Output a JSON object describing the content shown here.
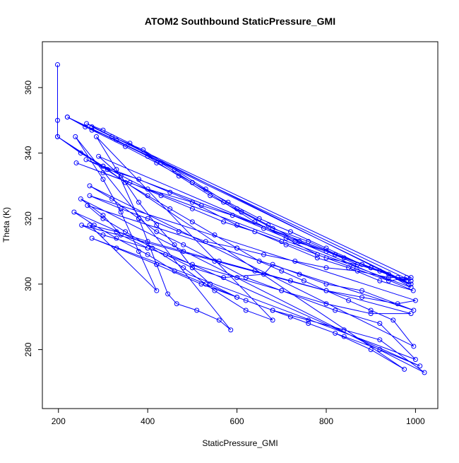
{
  "chart_data": {
    "type": "scatter",
    "title": "ATOM2 Southbound StaticPressure_GMI",
    "xlabel": "StaticPressure_GMI",
    "ylabel": "Theta (K)",
    "xlim": [
      164,
      1050
    ],
    "ylim": [
      262,
      374
    ],
    "xticks": [
      200,
      400,
      600,
      800,
      1000
    ],
    "yticks": [
      280,
      300,
      320,
      340,
      360
    ],
    "grid": false,
    "legend": "none",
    "series_color": "#0000ff",
    "series": [
      {
        "style": "lines+points",
        "points": [
          [
            198,
            367
          ],
          [
            198,
            350
          ],
          [
            198,
            345
          ],
          [
            250,
            340
          ],
          [
            300,
            336
          ],
          [
            350,
            331
          ],
          [
            400,
            327
          ],
          [
            450,
            323
          ],
          [
            500,
            319
          ],
          [
            550,
            315
          ],
          [
            600,
            311
          ],
          [
            650,
            307
          ],
          [
            700,
            304
          ],
          [
            750,
            301
          ],
          [
            800,
            298
          ],
          [
            850,
            295
          ],
          [
            900,
            292
          ],
          [
            950,
            289
          ],
          [
            996,
            281
          ],
          [
            270,
            330
          ],
          [
            320,
            326
          ],
          [
            380,
            320
          ],
          [
            420,
            316
          ],
          [
            480,
            312
          ],
          [
            550,
            307
          ],
          [
            620,
            302
          ],
          [
            700,
            298
          ],
          [
            800,
            294
          ],
          [
            900,
            291
          ],
          [
            990,
            291
          ],
          [
            252,
            318
          ],
          [
            300,
            315
          ],
          [
            400,
            311
          ],
          [
            500,
            306
          ],
          [
            600,
            302
          ],
          [
            700,
            298
          ],
          [
            820,
            292
          ],
          [
            920,
            288
          ],
          [
            1000,
            277
          ],
          [
            275,
            314
          ],
          [
            330,
            311
          ],
          [
            420,
            306
          ],
          [
            520,
            300
          ],
          [
            620,
            295
          ],
          [
            720,
            290
          ],
          [
            820,
            285
          ],
          [
            900,
            280
          ],
          [
            975,
            274
          ],
          [
            198,
            345
          ],
          [
            300,
            336
          ],
          [
            400,
            329
          ],
          [
            500,
            325
          ],
          [
            600,
            318
          ],
          [
            700,
            313
          ],
          [
            800,
            308
          ],
          [
            900,
            305
          ],
          [
            990,
            300
          ],
          [
            220,
            351
          ],
          [
            275,
            347
          ],
          [
            350,
            342
          ],
          [
            420,
            337
          ],
          [
            500,
            331
          ],
          [
            580,
            325
          ],
          [
            650,
            320
          ],
          [
            720,
            316
          ],
          [
            800,
            311
          ],
          [
            880,
            306
          ],
          [
            960,
            302
          ],
          [
            990,
            301
          ],
          [
            220,
            351
          ],
          [
            260,
            348
          ],
          [
            330,
            344
          ],
          [
            400,
            339
          ],
          [
            470,
            333
          ],
          [
            540,
            327
          ],
          [
            610,
            322
          ],
          [
            680,
            317
          ],
          [
            760,
            313
          ],
          [
            840,
            308
          ],
          [
            920,
            304
          ],
          [
            985,
            300
          ],
          [
            263,
            349
          ],
          [
            300,
            347
          ],
          [
            360,
            343
          ],
          [
            430,
            337
          ],
          [
            500,
            331
          ],
          [
            570,
            325
          ],
          [
            640,
            319
          ],
          [
            710,
            314
          ],
          [
            780,
            309
          ],
          [
            860,
            305
          ],
          [
            940,
            301
          ],
          [
            990,
            302
          ],
          [
            275,
            348
          ],
          [
            320,
            345
          ],
          [
            390,
            341
          ],
          [
            460,
            335
          ],
          [
            530,
            329
          ],
          [
            600,
            323
          ],
          [
            670,
            318
          ],
          [
            740,
            313
          ],
          [
            820,
            309
          ],
          [
            900,
            305
          ],
          [
            980,
            301
          ],
          [
            262,
            338
          ],
          [
            310,
            335
          ],
          [
            380,
            332
          ],
          [
            450,
            328
          ],
          [
            520,
            324
          ],
          [
            590,
            321
          ],
          [
            660,
            317
          ],
          [
            730,
            313
          ],
          [
            800,
            310
          ],
          [
            870,
            306
          ],
          [
            940,
            303
          ],
          [
            990,
            299
          ],
          [
            240,
            337
          ],
          [
            300,
            334
          ],
          [
            360,
            331
          ],
          [
            430,
            327
          ],
          [
            500,
            323
          ],
          [
            570,
            319
          ],
          [
            640,
            316
          ],
          [
            710,
            312
          ],
          [
            780,
            308
          ],
          [
            850,
            305
          ],
          [
            920,
            301
          ],
          [
            995,
            298
          ],
          [
            290,
            339
          ],
          [
            340,
            333
          ],
          [
            380,
            325
          ],
          [
            420,
            318
          ],
          [
            460,
            312
          ],
          [
            500,
            305
          ],
          [
            540,
            300
          ],
          [
            600,
            296
          ],
          [
            680,
            292
          ],
          [
            760,
            288
          ],
          [
            840,
            284
          ],
          [
            920,
            280
          ],
          [
            1010,
            275
          ],
          [
            235,
            322
          ],
          [
            280,
            318
          ],
          [
            330,
            314
          ],
          [
            400,
            309
          ],
          [
            460,
            304
          ],
          [
            530,
            300
          ],
          [
            600,
            296
          ],
          [
            680,
            292
          ],
          [
            760,
            289
          ],
          [
            840,
            286
          ],
          [
            920,
            283
          ],
          [
            1020,
            273
          ],
          [
            250,
            326
          ],
          [
            300,
            321
          ],
          [
            340,
            315
          ],
          [
            400,
            311
          ],
          [
            440,
            309
          ],
          [
            500,
            305
          ],
          [
            570,
            302
          ],
          [
            660,
            303
          ],
          [
            680,
            306
          ],
          [
            740,
            303
          ],
          [
            800,
            300
          ],
          [
            880,
            298
          ],
          [
            996,
            292
          ],
          [
            265,
            324
          ],
          [
            300,
            320
          ],
          [
            350,
            316
          ],
          [
            410,
            311
          ],
          [
            480,
            305
          ],
          [
            550,
            298
          ],
          [
            620,
            292
          ],
          [
            680,
            289
          ],
          [
            285,
            345
          ],
          [
            330,
            335
          ],
          [
            380,
            320
          ],
          [
            420,
            306
          ],
          [
            445,
            297
          ],
          [
            465,
            294
          ],
          [
            510,
            292
          ],
          [
            560,
            289
          ],
          [
            586,
            286
          ],
          [
            238,
            345
          ],
          [
            300,
            332
          ],
          [
            340,
            322
          ],
          [
            380,
            310
          ],
          [
            420,
            298
          ],
          [
            270,
            318
          ],
          [
            330,
            316
          ],
          [
            400,
            313
          ],
          [
            480,
            310
          ],
          [
            560,
            307
          ],
          [
            640,
            304
          ],
          [
            720,
            301
          ],
          [
            800,
            298
          ],
          [
            880,
            296
          ],
          [
            960,
            294
          ],
          [
            1000,
            295
          ],
          [
            270,
            327
          ],
          [
            340,
            323
          ],
          [
            400,
            320
          ],
          [
            470,
            316
          ],
          [
            530,
            313
          ],
          [
            600,
            311
          ],
          [
            660,
            309
          ],
          [
            730,
            307
          ],
          [
            800,
            305
          ],
          [
            870,
            304
          ],
          [
            940,
            302
          ],
          [
            980,
            302
          ]
        ]
      }
    ]
  }
}
